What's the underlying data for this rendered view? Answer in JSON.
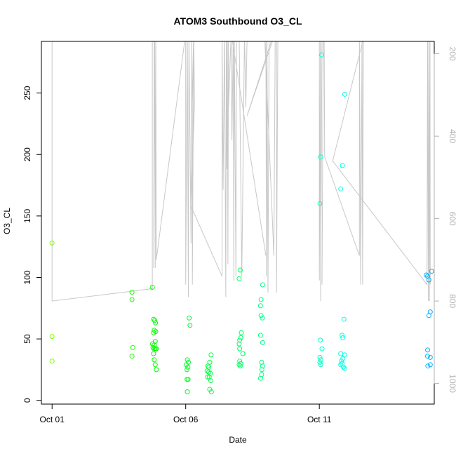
{
  "chart_data": {
    "type": "scatter",
    "title": "ATOM3 Southbound O3_CL",
    "xlabel": "Date",
    "ylabel": "O3_CL",
    "x_ticks": [
      {
        "label": "Oct 01",
        "value": 0
      },
      {
        "label": "Oct 06",
        "value": 5
      },
      {
        "label": "Oct 11",
        "value": 10
      }
    ],
    "xlim": [
      -0.4,
      14.3
    ],
    "ylim": [
      -3,
      292
    ],
    "y_ticks": [
      0,
      50,
      100,
      150,
      200,
      250
    ],
    "right_axis": {
      "reversed": true,
      "ylim": [
        1050,
        170
      ],
      "ticks": [
        200,
        400,
        600,
        800,
        1000
      ],
      "color": "#b0b0b0"
    },
    "grid": false,
    "point_colors": {
      "early": "#7fff00",
      "mid": "#00ff7f",
      "late": "#00bfff"
    },
    "line_color": "#c8c8c8",
    "points": [
      {
        "x": 0.0,
        "y": 128
      },
      {
        "x": 0.0,
        "y": 52
      },
      {
        "x": 0.0,
        "y": 32
      },
      {
        "x": 2.99,
        "y": 88
      },
      {
        "x": 2.99,
        "y": 82
      },
      {
        "x": 3.02,
        "y": 43
      },
      {
        "x": 2.99,
        "y": 36
      },
      {
        "x": 3.75,
        "y": 92
      },
      {
        "x": 3.8,
        "y": 66
      },
      {
        "x": 3.84,
        "y": 65
      },
      {
        "x": 3.87,
        "y": 63
      },
      {
        "x": 3.82,
        "y": 57
      },
      {
        "x": 3.88,
        "y": 56
      },
      {
        "x": 3.8,
        "y": 55
      },
      {
        "x": 3.86,
        "y": 48
      },
      {
        "x": 3.76,
        "y": 46
      },
      {
        "x": 3.82,
        "y": 45
      },
      {
        "x": 3.78,
        "y": 43
      },
      {
        "x": 3.82,
        "y": 42
      },
      {
        "x": 3.86,
        "y": 42
      },
      {
        "x": 3.9,
        "y": 42
      },
      {
        "x": 3.8,
        "y": 38
      },
      {
        "x": 3.82,
        "y": 33
      },
      {
        "x": 3.86,
        "y": 29
      },
      {
        "x": 3.9,
        "y": 25
      },
      {
        "x": 5.13,
        "y": 67
      },
      {
        "x": 5.16,
        "y": 61
      },
      {
        "x": 5.06,
        "y": 33
      },
      {
        "x": 5.1,
        "y": 31
      },
      {
        "x": 5.02,
        "y": 29
      },
      {
        "x": 5.08,
        "y": 27
      },
      {
        "x": 5.05,
        "y": 25
      },
      {
        "x": 5.05,
        "y": 17
      },
      {
        "x": 5.09,
        "y": 17
      },
      {
        "x": 5.06,
        "y": 7
      },
      {
        "x": 5.83,
        "y": 28
      },
      {
        "x": 5.86,
        "y": 27
      },
      {
        "x": 5.9,
        "y": 31
      },
      {
        "x": 5.95,
        "y": 37
      },
      {
        "x": 5.8,
        "y": 24
      },
      {
        "x": 5.86,
        "y": 23
      },
      {
        "x": 5.92,
        "y": 22
      },
      {
        "x": 5.82,
        "y": 19
      },
      {
        "x": 5.88,
        "y": 19
      },
      {
        "x": 5.94,
        "y": 16
      },
      {
        "x": 5.9,
        "y": 9
      },
      {
        "x": 5.96,
        "y": 7
      },
      {
        "x": 7.04,
        "y": 106
      },
      {
        "x": 7.0,
        "y": 99
      },
      {
        "x": 7.08,
        "y": 55
      },
      {
        "x": 7.06,
        "y": 51
      },
      {
        "x": 7.02,
        "y": 49
      },
      {
        "x": 7.0,
        "y": 46
      },
      {
        "x": 7.02,
        "y": 42
      },
      {
        "x": 7.14,
        "y": 38
      },
      {
        "x": 7.02,
        "y": 32
      },
      {
        "x": 7.06,
        "y": 30
      },
      {
        "x": 7.0,
        "y": 29
      },
      {
        "x": 7.04,
        "y": 28
      },
      {
        "x": 7.88,
        "y": 94
      },
      {
        "x": 7.82,
        "y": 82
      },
      {
        "x": 7.8,
        "y": 77
      },
      {
        "x": 7.82,
        "y": 69
      },
      {
        "x": 7.87,
        "y": 67
      },
      {
        "x": 7.8,
        "y": 53
      },
      {
        "x": 7.88,
        "y": 47
      },
      {
        "x": 7.84,
        "y": 31
      },
      {
        "x": 7.88,
        "y": 28
      },
      {
        "x": 7.85,
        "y": 25
      },
      {
        "x": 7.84,
        "y": 21
      },
      {
        "x": 7.8,
        "y": 18
      },
      {
        "x": 10.09,
        "y": 281
      },
      {
        "x": 10.05,
        "y": 198
      },
      {
        "x": 10.02,
        "y": 160
      },
      {
        "x": 10.04,
        "y": 49
      },
      {
        "x": 10.1,
        "y": 42
      },
      {
        "x": 10.02,
        "y": 35
      },
      {
        "x": 10.05,
        "y": 33
      },
      {
        "x": 10.02,
        "y": 31
      },
      {
        "x": 10.05,
        "y": 29
      },
      {
        "x": 10.95,
        "y": 249
      },
      {
        "x": 10.86,
        "y": 191
      },
      {
        "x": 10.8,
        "y": 172
      },
      {
        "x": 10.92,
        "y": 66
      },
      {
        "x": 10.85,
        "y": 53
      },
      {
        "x": 10.88,
        "y": 51
      },
      {
        "x": 10.8,
        "y": 38
      },
      {
        "x": 10.95,
        "y": 37
      },
      {
        "x": 10.88,
        "y": 34
      },
      {
        "x": 10.83,
        "y": 32
      },
      {
        "x": 10.85,
        "y": 30
      },
      {
        "x": 10.8,
        "y": 29
      },
      {
        "x": 10.9,
        "y": 27
      },
      {
        "x": 10.95,
        "y": 26
      },
      {
        "x": 14.0,
        "y": 102
      },
      {
        "x": 14.05,
        "y": 101
      },
      {
        "x": 14.2,
        "y": 105
      },
      {
        "x": 14.1,
        "y": 98
      },
      {
        "x": 14.15,
        "y": 72
      },
      {
        "x": 14.1,
        "y": 69
      },
      {
        "x": 14.05,
        "y": 41
      },
      {
        "x": 14.05,
        "y": 36
      },
      {
        "x": 14.15,
        "y": 35
      },
      {
        "x": 14.15,
        "y": 29
      },
      {
        "x": 14.06,
        "y": 28
      }
    ],
    "pressure_track": [
      [
        0.0,
        150
      ],
      [
        0.0,
        800
      ],
      [
        3.75,
        770
      ],
      [
        3.75,
        150
      ],
      [
        3.82,
        150
      ],
      [
        3.8,
        720
      ],
      [
        3.84,
        150
      ],
      [
        3.86,
        720
      ],
      [
        3.88,
        150
      ],
      [
        3.9,
        700
      ],
      [
        5.0,
        150
      ],
      [
        5.0,
        760
      ],
      [
        5.06,
        150
      ],
      [
        5.1,
        790
      ],
      [
        5.12,
        150
      ],
      [
        5.2,
        660
      ],
      [
        5.23,
        150
      ],
      [
        5.23,
        340
      ],
      [
        5.3,
        150
      ],
      [
        5.3,
        150
      ],
      [
        5.25,
        320
      ],
      [
        5.25,
        760
      ],
      [
        5.3,
        150
      ],
      [
        5.33,
        320
      ],
      [
        5.2,
        570
      ],
      [
        6.36,
        740
      ],
      [
        6.36,
        150
      ],
      [
        6.4,
        530
      ],
      [
        6.45,
        150
      ],
      [
        6.5,
        790
      ],
      [
        6.52,
        150
      ],
      [
        6.54,
        480
      ],
      [
        6.56,
        150
      ],
      [
        6.58,
        710
      ],
      [
        6.6,
        150
      ],
      [
        6.6,
        330
      ],
      [
        6.7,
        150
      ],
      [
        8.0,
        690
      ],
      [
        6.7,
        150
      ],
      [
        6.73,
        410
      ],
      [
        6.78,
        150
      ],
      [
        6.8,
        750
      ],
      [
        6.82,
        150
      ],
      [
        6.88,
        740
      ],
      [
        6.9,
        150
      ],
      [
        6.9,
        150
      ],
      [
        7.0,
        150
      ],
      [
        7.1,
        740
      ],
      [
        7.2,
        150
      ],
      [
        7.25,
        330
      ],
      [
        7.3,
        150
      ],
      [
        7.3,
        150
      ],
      [
        8.0,
        150
      ],
      [
        8.02,
        740
      ],
      [
        8.04,
        150
      ],
      [
        8.08,
        780
      ],
      [
        8.12,
        150
      ],
      [
        8.12,
        150
      ],
      [
        7.6,
        150
      ],
      [
        8.4,
        150
      ],
      [
        8.4,
        780
      ],
      [
        8.45,
        150
      ],
      [
        8.45,
        150
      ],
      [
        7.95,
        150
      ],
      [
        8.3,
        690
      ],
      [
        8.35,
        150
      ],
      [
        8.35,
        150
      ],
      [
        8.35,
        150
      ],
      [
        7.3,
        350
      ],
      [
        8.3,
        150
      ],
      [
        8.4,
        150
      ],
      [
        10.0,
        150
      ],
      [
        10.0,
        750
      ],
      [
        10.04,
        150
      ],
      [
        10.05,
        800
      ],
      [
        10.1,
        150
      ],
      [
        10.1,
        150
      ],
      [
        10.15,
        150
      ],
      [
        10.1,
        760
      ],
      [
        10.15,
        150
      ],
      [
        10.18,
        150
      ],
      [
        10.2,
        450
      ],
      [
        11.5,
        690
      ],
      [
        11.5,
        150
      ],
      [
        11.55,
        760
      ],
      [
        11.6,
        150
      ],
      [
        11.62,
        760
      ],
      [
        11.65,
        150
      ],
      [
        11.7,
        150
      ],
      [
        10.5,
        460
      ],
      [
        14.03,
        760
      ],
      [
        14.05,
        150
      ],
      [
        14.08,
        800
      ],
      [
        14.1,
        150
      ],
      [
        14.12,
        800
      ],
      [
        14.14,
        150
      ],
      [
        14.15,
        760
      ]
    ]
  }
}
